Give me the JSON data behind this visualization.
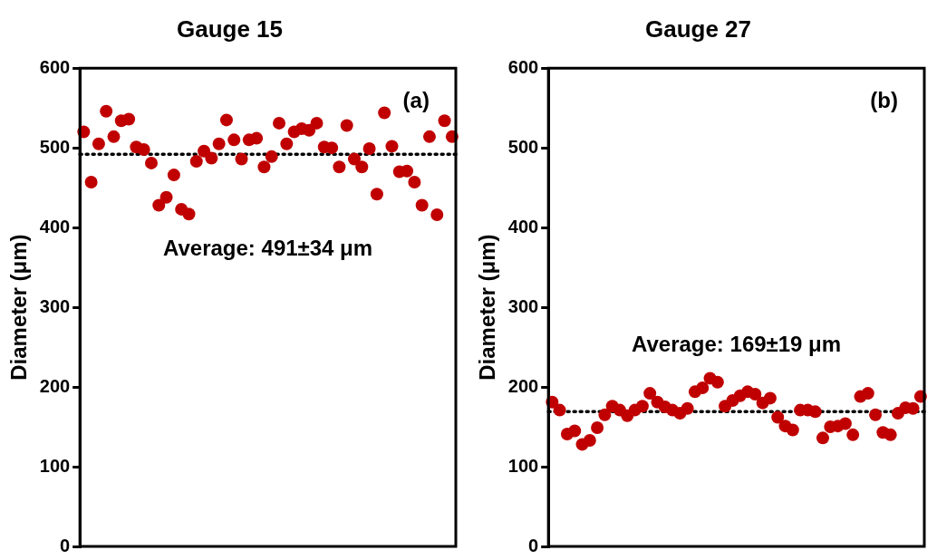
{
  "chart_data": [
    {
      "type": "scatter",
      "title": "Gauge 15",
      "ylabel": "Diameter (μm)",
      "categories": [
        null,
        null,
        null,
        null,
        null,
        null,
        null,
        null,
        null,
        null,
        null,
        null,
        null,
        null,
        null,
        null,
        null,
        null,
        null,
        null,
        null,
        null,
        null,
        null,
        null,
        null,
        null,
        null,
        null,
        null,
        null,
        null,
        null,
        null,
        null,
        null,
        null,
        null,
        null,
        null,
        null,
        null,
        null,
        null,
        null,
        null,
        null,
        null,
        null,
        null
      ],
      "series": [
        {
          "color": "#c00000",
          "values": [
            520,
            457,
            505,
            546,
            514,
            534,
            536,
            501,
            498,
            481,
            428,
            438,
            466,
            423,
            417,
            483,
            496,
            487,
            505,
            535,
            510,
            486,
            510,
            512,
            476,
            489,
            531,
            505,
            520,
            524,
            522,
            531,
            501,
            500,
            476,
            528,
            486,
            476,
            499,
            442,
            544,
            502,
            470,
            471,
            457,
            428,
            514,
            416,
            534,
            514
          ]
        }
      ],
      "marker": "circle",
      "ref_lines": [
        {
          "axis": "y",
          "value": 492,
          "color": "#000000",
          "line_style": "dotted"
        }
      ],
      "ylim": [
        0,
        600
      ],
      "yticks": [
        0,
        100,
        200,
        300,
        400,
        500,
        600
      ],
      "tick_labels": "y",
      "annotations": [
        "(a)",
        "Average: 491±34 μm"
      ]
    },
    {
      "type": "scatter",
      "title": "Gauge 27",
      "ylabel": "Diameter (μm)",
      "categories": [
        null,
        null,
        null,
        null,
        null,
        null,
        null,
        null,
        null,
        null,
        null,
        null,
        null,
        null,
        null,
        null,
        null,
        null,
        null,
        null,
        null,
        null,
        null,
        null,
        null,
        null,
        null,
        null,
        null,
        null,
        null,
        null,
        null,
        null,
        null,
        null,
        null,
        null,
        null,
        null,
        null,
        null,
        null,
        null,
        null,
        null,
        null,
        null,
        null,
        null
      ],
      "series": [
        {
          "color": "#c00000",
          "values": [
            181,
            171,
            141,
            145,
            128,
            133,
            149,
            165,
            176,
            171,
            164,
            171,
            176,
            192,
            181,
            175,
            171,
            167,
            173,
            194,
            199,
            211,
            206,
            176,
            183,
            189,
            194,
            191,
            180,
            186,
            162,
            151,
            146,
            171,
            171,
            169,
            136,
            150,
            151,
            154,
            140,
            188,
            192,
            165,
            143,
            140,
            167,
            174,
            173,
            188
          ]
        }
      ],
      "marker": "circle",
      "ref_lines": [
        {
          "axis": "y",
          "value": 169,
          "color": "#000000",
          "line_style": "dotted"
        }
      ],
      "ylim": [
        0,
        600
      ],
      "yticks": [
        0,
        100,
        200,
        300,
        400,
        500,
        600
      ],
      "tick_labels": "y",
      "annotations": [
        "(b)",
        "Average: 169±19 μm"
      ]
    }
  ]
}
